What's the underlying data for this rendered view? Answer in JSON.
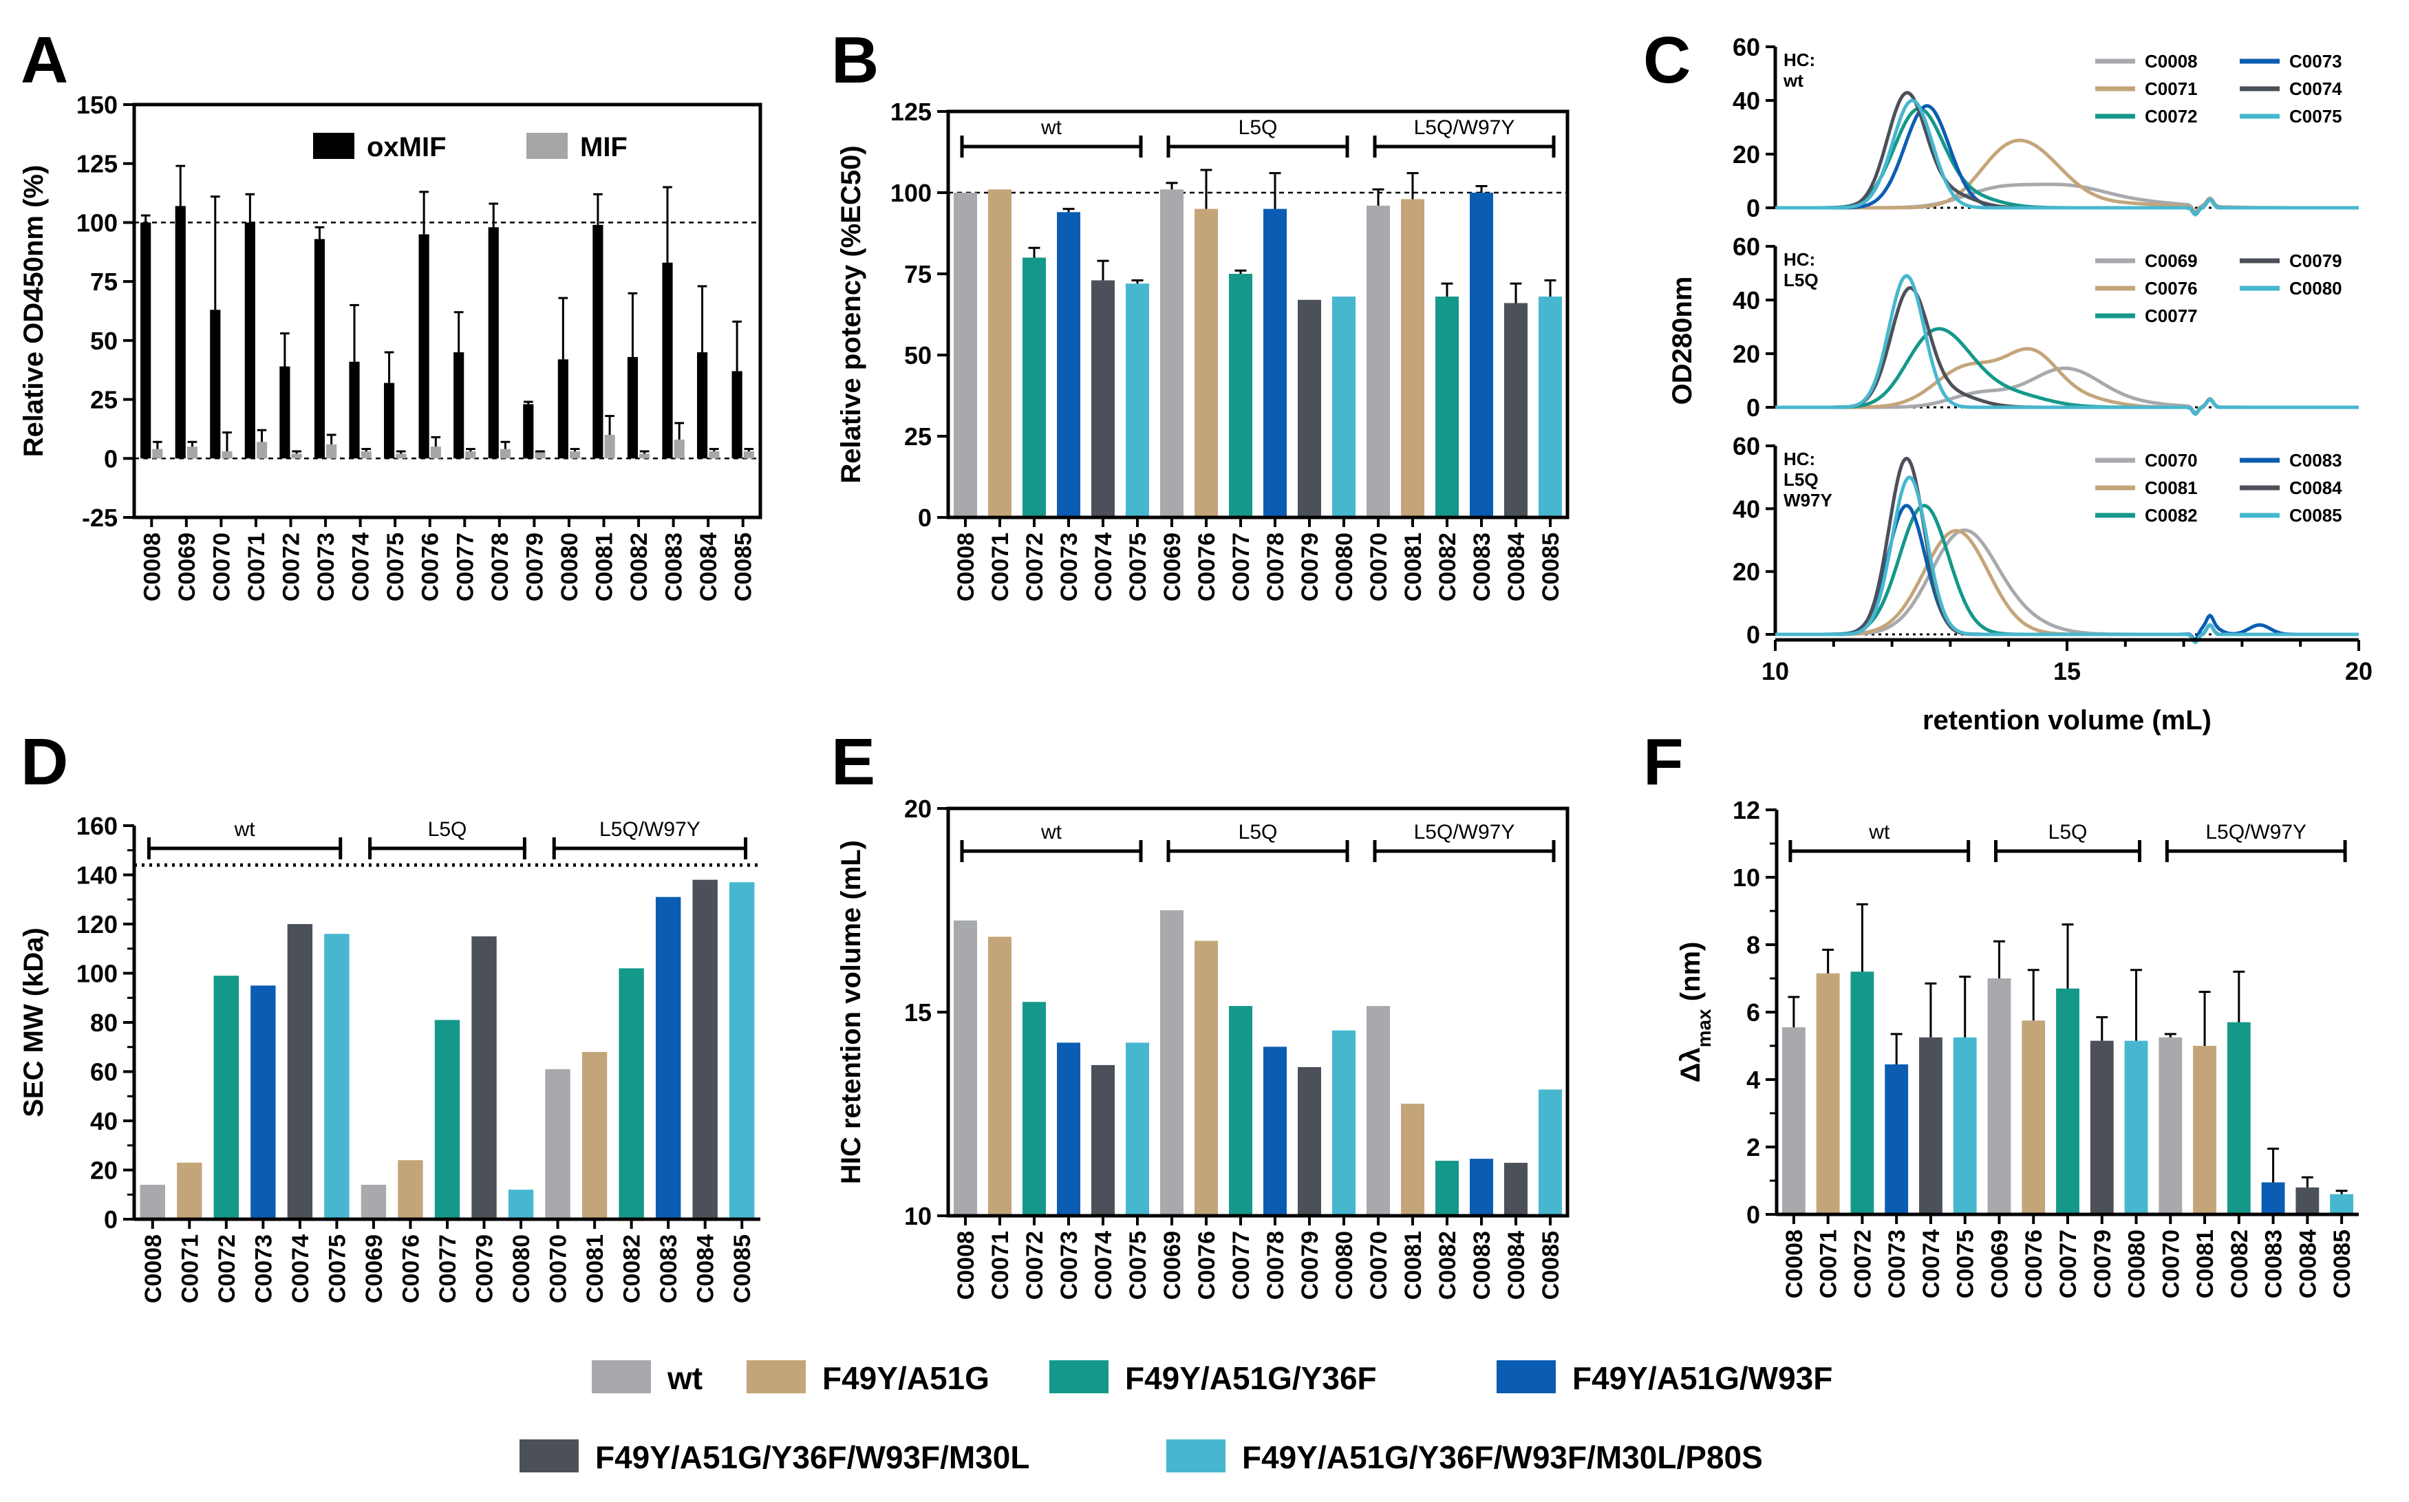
{
  "colors": {
    "wt": "#a7a9ac",
    "F49Y/A51G": "#c4a57a",
    "F49Y/A51G/Y36F": "#14988a",
    "F49Y/A51G/W93F": "#0b5db3",
    "F49Y/A51G/Y36F/W93F/M30L": "#4c5058",
    "F49Y/A51G/Y36F/W93F/M30L/P80S": "#47b7cf",
    "oxMIF": "#000000",
    "MIF": "#a6a6a6"
  },
  "legend": {
    "row1": [
      "wt",
      "F49Y/A51G",
      "F49Y/A51G/Y36F",
      "F49Y/A51G/W93F"
    ],
    "row2": [
      "F49Y/A51G/Y36F/W93F/M30L",
      "F49Y/A51G/Y36F/W93F/M30L/P80S"
    ]
  },
  "chart_data": [
    {
      "panel": "A",
      "type": "bar",
      "title": "",
      "ylabel": "Relative OD450nm (%)",
      "xlabel": "",
      "ylim": [
        -25,
        150
      ],
      "yticks": [
        -25,
        0,
        25,
        50,
        75,
        100,
        125,
        150
      ],
      "reference_line": 100,
      "categories": [
        "C0008",
        "C0069",
        "C0070",
        "C0071",
        "C0072",
        "C0073",
        "C0074",
        "C0075",
        "C0076",
        "C0077",
        "C0078",
        "C0079",
        "C0080",
        "C0081",
        "C0082",
        "C0083",
        "C0084",
        "C0085"
      ],
      "series": [
        {
          "name": "oxMIF",
          "values": [
            100,
            107,
            63,
            100,
            39,
            93,
            41,
            32,
            95,
            45,
            98,
            23,
            42,
            99,
            43,
            83,
            45,
            37
          ],
          "errors": [
            3,
            17,
            48,
            12,
            14,
            5,
            24,
            13,
            18,
            17,
            10,
            1,
            26,
            13,
            27,
            32,
            28,
            21
          ]
        },
        {
          "name": "MIF",
          "values": [
            4,
            5,
            3,
            7,
            2,
            6,
            3,
            2,
            5,
            3,
            4,
            3,
            3,
            10,
            2,
            8,
            3,
            3
          ],
          "errors": [
            3,
            2,
            8,
            5,
            1,
            4,
            1,
            1,
            4,
            1,
            3,
            0,
            1,
            8,
            1,
            7,
            1,
            1
          ]
        }
      ]
    },
    {
      "panel": "B",
      "type": "bar",
      "title": "",
      "ylabel": "Relative potency (%EC50)",
      "xlabel": "",
      "ylim": [
        0,
        125
      ],
      "yticks": [
        0,
        25,
        50,
        75,
        100,
        125
      ],
      "reference_line": 100,
      "groups": [
        "wt",
        "L5Q",
        "L5Q/W97Y"
      ],
      "categories": [
        "C0008",
        "C0071",
        "C0072",
        "C0073",
        "C0074",
        "C0075",
        "C0069",
        "C0076",
        "C0077",
        "C0078",
        "C0079",
        "C0080",
        "C0070",
        "C0081",
        "C0082",
        "C0083",
        "C0084",
        "C0085"
      ],
      "variants": [
        "wt",
        "F49Y/A51G",
        "F49Y/A51G/Y36F",
        "F49Y/A51G/W93F",
        "F49Y/A51G/Y36F/W93F/M30L",
        "F49Y/A51G/Y36F/W93F/M30L/P80S",
        "wt",
        "F49Y/A51G",
        "F49Y/A51G/Y36F",
        "F49Y/A51G/W93F",
        "F49Y/A51G/Y36F/W93F/M30L",
        "F49Y/A51G/Y36F/W93F/M30L/P80S",
        "wt",
        "F49Y/A51G",
        "F49Y/A51G/Y36F",
        "F49Y/A51G/W93F",
        "F49Y/A51G/Y36F/W93F/M30L",
        "F49Y/A51G/Y36F/W93F/M30L/P80S"
      ],
      "values": [
        100,
        101,
        80,
        94,
        73,
        72,
        101,
        95,
        75,
        95,
        67,
        68,
        96,
        98,
        68,
        100,
        66,
        68
      ],
      "errors": [
        0,
        0,
        3,
        1,
        6,
        1,
        2,
        12,
        1,
        11,
        0,
        0,
        5,
        8,
        4,
        2,
        6,
        5
      ]
    },
    {
      "panel": "C",
      "type": "line",
      "ylabel": "OD280nm",
      "xlabel": "retention volume (mL)",
      "xlim": [
        10,
        20
      ],
      "xticks": [
        10,
        15,
        20
      ],
      "ylim": [
        0,
        60
      ],
      "yticks": [
        0,
        20,
        40,
        60
      ],
      "subplots": [
        {
          "label": "HC: wt",
          "series": [
            {
              "name": "C0008",
              "variant": "wt",
              "peaks": [
                [
                  13.8,
                  6.5,
                  0.6
                ],
                [
                  15.0,
                  7,
                  0.65
                ],
                [
                  16.2,
                  2,
                  0.8
                ]
              ]
            },
            {
              "name": "C0071",
              "variant": "F49Y/A51G",
              "peaks": [
                [
                  13.8,
                  7,
                  0.45
                ],
                [
                  14.35,
                  21,
                  0.6
                ],
                [
                  16.0,
                  1.5,
                  0.7
                ]
              ]
            },
            {
              "name": "C0072",
              "variant": "F49Y/A51G/Y36F",
              "peaks": [
                [
                  12.45,
                  36,
                  0.42
                ],
                [
                  13.3,
                  4,
                  0.5
                ]
              ]
            },
            {
              "name": "C0073",
              "variant": "F49Y/A51G/W93F",
              "peaks": [
                [
                  12.6,
                  38,
                  0.38
                ]
              ]
            },
            {
              "name": "C0074",
              "variant": "F49Y/A51G/Y36F/W93F/M30L",
              "peaks": [
                [
                  12.25,
                  42,
                  0.33
                ],
                [
                  13.0,
                  5,
                  0.4
                ]
              ]
            },
            {
              "name": "C0075",
              "variant": "F49Y/A51G/Y36F/W93F/M30L/P80S",
              "peaks": [
                [
                  12.35,
                  40,
                  0.34
                ]
              ]
            }
          ]
        },
        {
          "label": "HC: L5Q",
          "series": [
            {
              "name": "C0069",
              "variant": "wt",
              "peaks": [
                [
                  13.5,
                  5,
                  0.5
                ],
                [
                  14.95,
                  14,
                  0.6
                ],
                [
                  16.0,
                  1.5,
                  0.7
                ]
              ]
            },
            {
              "name": "C0076",
              "variant": "F49Y/A51G",
              "peaks": [
                [
                  13.3,
                  15,
                  0.55
                ],
                [
                  14.4,
                  19,
                  0.45
                ],
                [
                  15.3,
                  3,
                  0.5
                ]
              ]
            },
            {
              "name": "C0077",
              "variant": "F49Y/A51G/Y36F",
              "peaks": [
                [
                  12.5,
                  10,
                  0.4
                ],
                [
                  12.95,
                  22,
                  0.5
                ],
                [
                  14.0,
                  5,
                  0.6
                ]
              ]
            },
            {
              "name": "C0079",
              "variant": "F49Y/A51G/Y36F/W93F/M30L",
              "peaks": [
                [
                  12.3,
                  43,
                  0.32
                ],
                [
                  13.0,
                  5,
                  0.45
                ]
              ]
            },
            {
              "name": "C0080",
              "variant": "F49Y/A51G/Y36F/W93F/M30L/P80S",
              "peaks": [
                [
                  12.25,
                  49,
                  0.3
                ]
              ]
            }
          ]
        },
        {
          "label": "HC: L5Q W97Y",
          "series": [
            {
              "name": "C0070",
              "variant": "wt",
              "peaks": [
                [
                  13.2,
                  31,
                  0.55
                ],
                [
                  14.0,
                  5,
                  0.6
                ]
              ]
            },
            {
              "name": "C0081",
              "variant": "F49Y/A51G",
              "peaks": [
                [
                  13.1,
                  33,
                  0.55
                ]
              ]
            },
            {
              "name": "C0082",
              "variant": "F49Y/A51G/Y36F",
              "peaks": [
                [
                  12.55,
                  41,
                  0.42
                ]
              ]
            },
            {
              "name": "C0083",
              "variant": "F49Y/A51G/W93F",
              "peaks": [
                [
                  12.25,
                  41,
                  0.32
                ],
                [
                  17.45,
                  3,
                  0.15
                ],
                [
                  18.3,
                  3,
                  0.18
                ]
              ]
            },
            {
              "name": "C0084",
              "variant": "F49Y/A51G/Y36F/W93F/M30L",
              "peaks": [
                [
                  12.25,
                  56,
                  0.3
                ]
              ]
            },
            {
              "name": "C0085",
              "variant": "F49Y/A51G/Y36F/W93F/M30L/P80S",
              "peaks": [
                [
                  12.3,
                  50,
                  0.3
                ]
              ]
            }
          ]
        }
      ]
    },
    {
      "panel": "D",
      "type": "bar",
      "ylabel": "SEC MW (kDa)",
      "xlabel": "",
      "ylim": [
        0,
        160
      ],
      "yticks": [
        0,
        20,
        40,
        60,
        80,
        100,
        120,
        140,
        160
      ],
      "reference_line": 144,
      "groups": [
        "wt",
        "L5Q",
        "L5Q/W97Y"
      ],
      "categories": [
        "C0008",
        "C0071",
        "C0072",
        "C0073",
        "C0074",
        "C0075",
        "C0069",
        "C0076",
        "C0077",
        "C0079",
        "C0080",
        "C0070",
        "C0081",
        "C0082",
        "C0083",
        "C0084",
        "C0085"
      ],
      "variants": [
        "wt",
        "F49Y/A51G",
        "F49Y/A51G/Y36F",
        "F49Y/A51G/W93F",
        "F49Y/A51G/Y36F/W93F/M30L",
        "F49Y/A51G/Y36F/W93F/M30L/P80S",
        "wt",
        "F49Y/A51G",
        "F49Y/A51G/Y36F",
        "F49Y/A51G/Y36F/W93F/M30L",
        "F49Y/A51G/Y36F/W93F/M30L/P80S",
        "wt",
        "F49Y/A51G",
        "F49Y/A51G/Y36F",
        "F49Y/A51G/W93F",
        "F49Y/A51G/Y36F/W93F/M30L",
        "F49Y/A51G/Y36F/W93F/M30L/P80S"
      ],
      "values": [
        14,
        23,
        99,
        95,
        120,
        116,
        14,
        24,
        81,
        115,
        12,
        61,
        68,
        102,
        131,
        138,
        137
      ]
    },
    {
      "panel": "E",
      "type": "bar",
      "ylabel": "HIC retention volume (mL)",
      "xlabel": "",
      "ylim": [
        10,
        20
      ],
      "yticks": [
        10,
        15,
        20
      ],
      "groups": [
        "wt",
        "L5Q",
        "L5Q/W97Y"
      ],
      "categories": [
        "C0008",
        "C0071",
        "C0072",
        "C0073",
        "C0074",
        "C0075",
        "C0069",
        "C0076",
        "C0077",
        "C0078",
        "C0079",
        "C0080",
        "C0070",
        "C0081",
        "C0082",
        "C0083",
        "C0084",
        "C0085"
      ],
      "variants": [
        "wt",
        "F49Y/A51G",
        "F49Y/A51G/Y36F",
        "F49Y/A51G/W93F",
        "F49Y/A51G/Y36F/W93F/M30L",
        "F49Y/A51G/Y36F/W93F/M30L/P80S",
        "wt",
        "F49Y/A51G",
        "F49Y/A51G/Y36F",
        "F49Y/A51G/W93F",
        "F49Y/A51G/Y36F/W93F/M30L",
        "F49Y/A51G/Y36F/W93F/M30L/P80S",
        "wt",
        "F49Y/A51G",
        "F49Y/A51G/Y36F",
        "F49Y/A51G/W93F",
        "F49Y/A51G/Y36F/W93F/M30L",
        "F49Y/A51G/Y36F/W93F/M30L/P80S"
      ],
      "values": [
        17.25,
        16.85,
        15.25,
        14.25,
        13.7,
        14.25,
        17.5,
        16.75,
        15.15,
        14.15,
        13.65,
        14.55,
        15.15,
        12.75,
        11.35,
        11.4,
        11.3,
        13.1
      ]
    },
    {
      "panel": "F",
      "type": "bar",
      "ylabel": "Δλmax (nm)",
      "ylabel_main": "Δλ",
      "ylabel_sub": "max",
      "ylabel_tail": " (nm)",
      "xlabel": "",
      "ylim": [
        0,
        12
      ],
      "yticks": [
        0,
        2,
        4,
        6,
        8,
        10,
        12
      ],
      "groups": [
        "wt",
        "L5Q",
        "L5Q/W97Y"
      ],
      "categories": [
        "C0008",
        "C0071",
        "C0072",
        "C0073",
        "C0074",
        "C0075",
        "C0069",
        "C0076",
        "C0077",
        "C0079",
        "C0080",
        "C0070",
        "C0081",
        "C0082",
        "C0083",
        "C0084",
        "C0085"
      ],
      "variants": [
        "wt",
        "F49Y/A51G",
        "F49Y/A51G/Y36F",
        "F49Y/A51G/W93F",
        "F49Y/A51G/Y36F/W93F/M30L",
        "F49Y/A51G/Y36F/W93F/M30L/P80S",
        "wt",
        "F49Y/A51G",
        "F49Y/A51G/Y36F",
        "F49Y/A51G/Y36F/W93F/M30L",
        "F49Y/A51G/Y36F/W93F/M30L/P80S",
        "wt",
        "F49Y/A51G",
        "F49Y/A51G/Y36F",
        "F49Y/A51G/W93F",
        "F49Y/A51G/Y36F/W93F/M30L",
        "F49Y/A51G/Y36F/W93F/M30L/P80S"
      ],
      "values": [
        5.55,
        7.15,
        7.2,
        4.45,
        5.25,
        5.25,
        7.0,
        5.75,
        6.7,
        5.15,
        5.15,
        5.25,
        5.0,
        5.7,
        0.95,
        0.8,
        0.6
      ],
      "errors": [
        0.9,
        0.7,
        2.0,
        0.9,
        1.6,
        1.8,
        1.1,
        1.5,
        1.9,
        0.7,
        2.1,
        0.1,
        1.6,
        1.5,
        1.0,
        0.3,
        0.1
      ]
    }
  ]
}
